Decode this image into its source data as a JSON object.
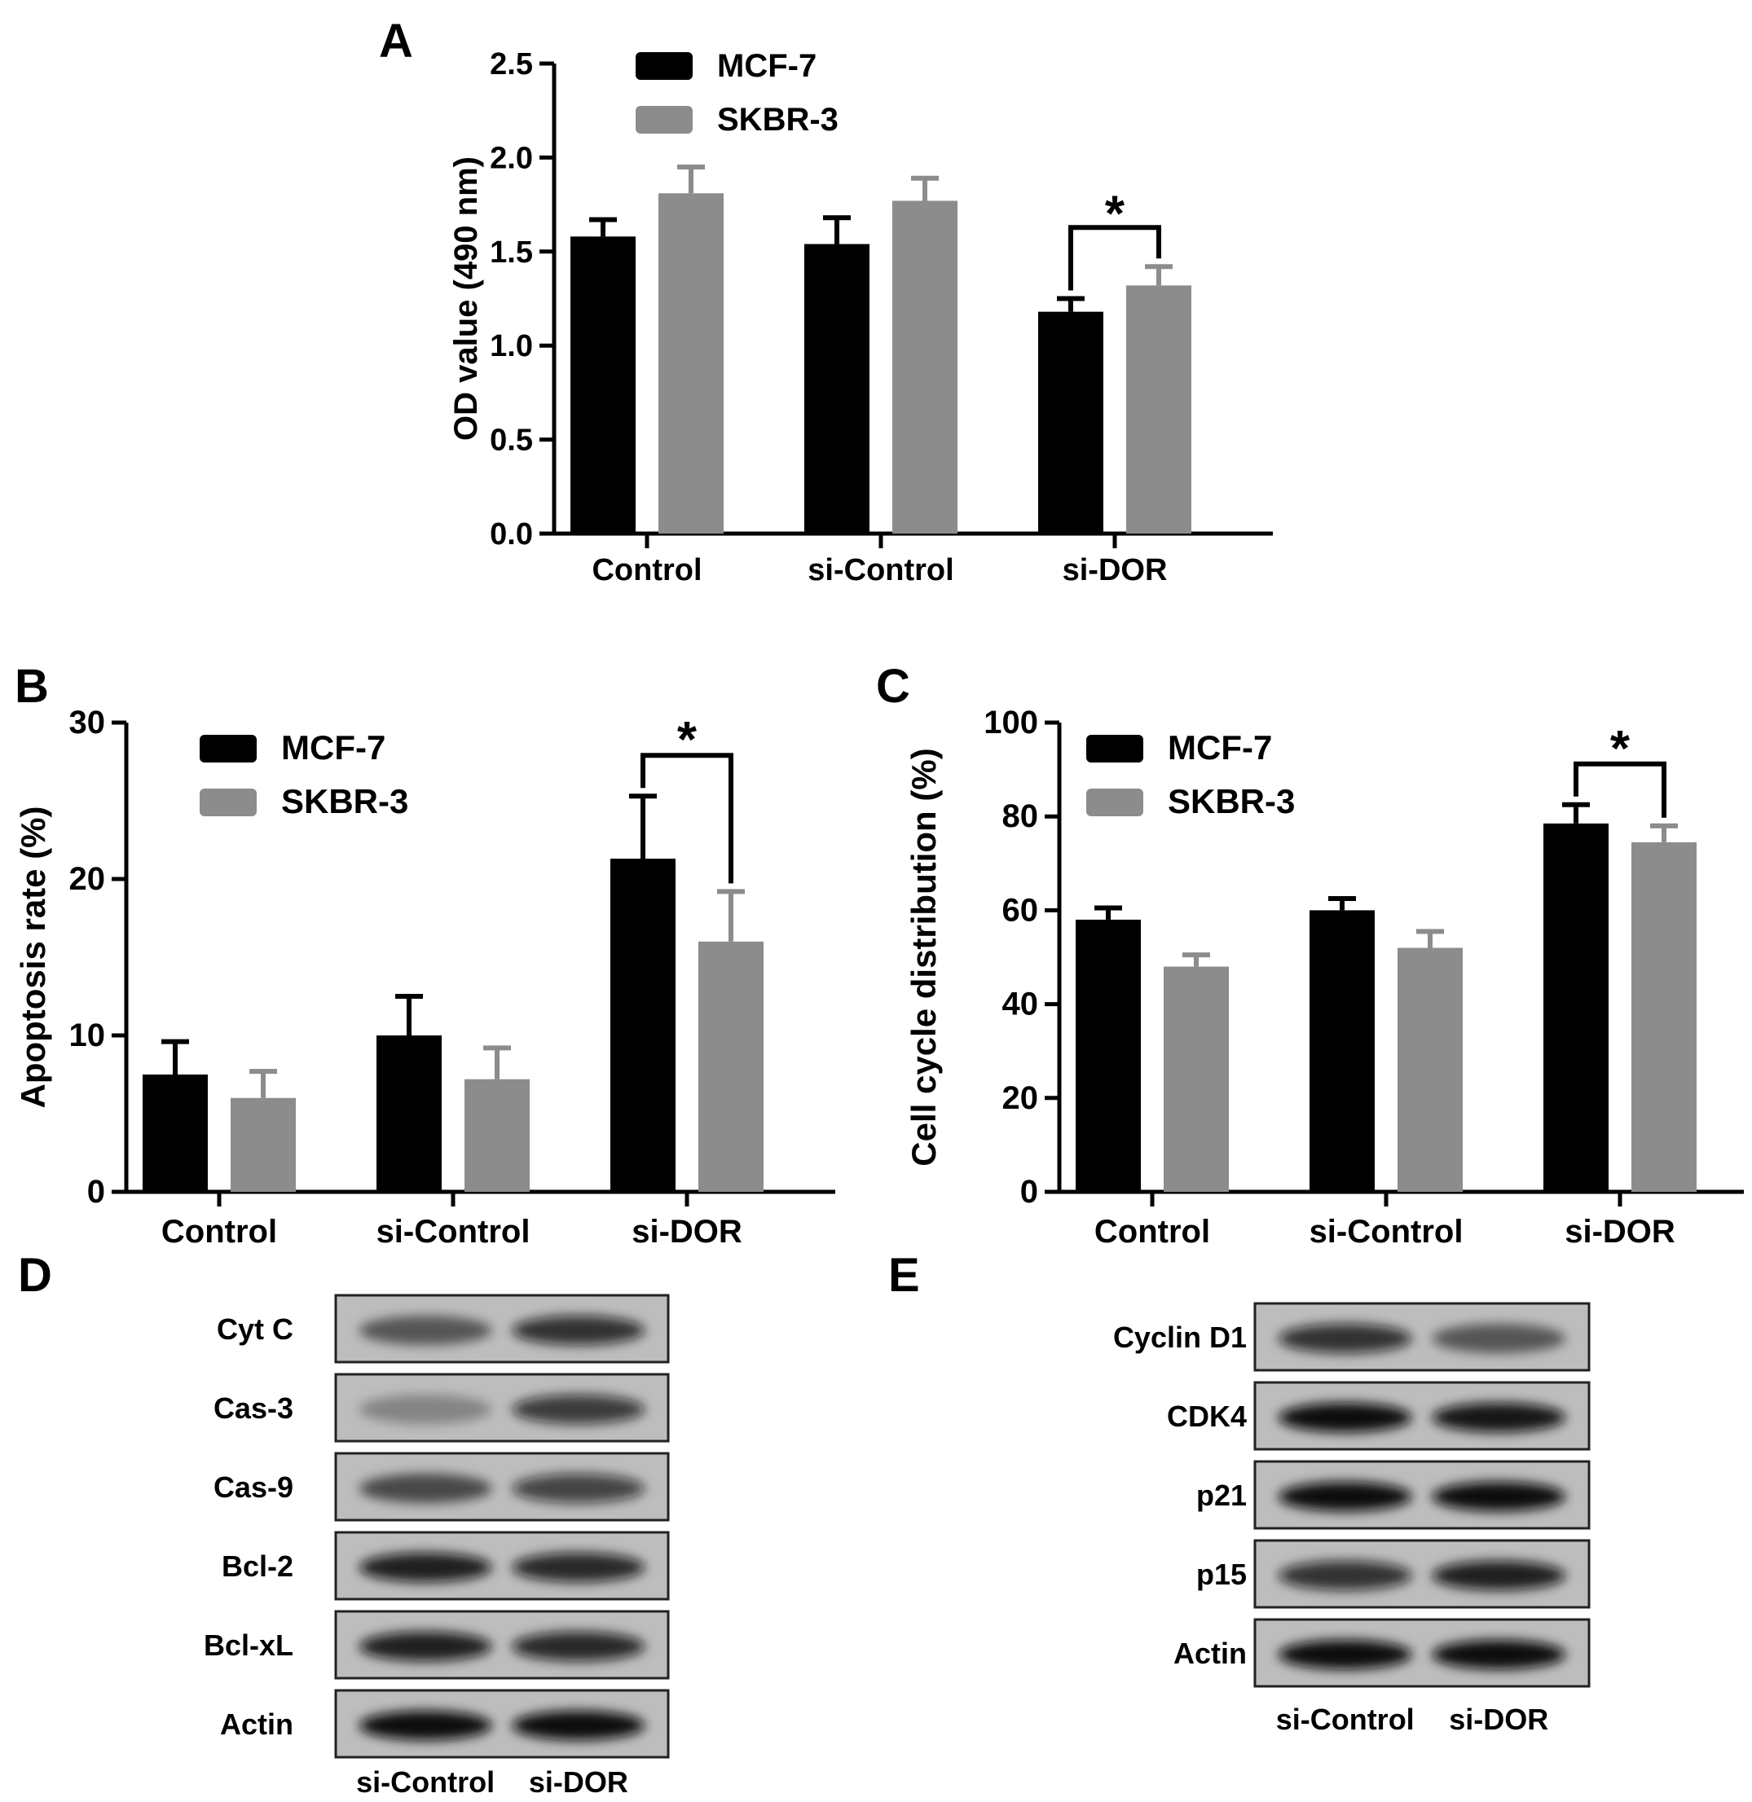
{
  "colors": {
    "mcf7": "#000000",
    "skbr3": "#8c8c8c",
    "axis": "#000000"
  },
  "chart_data": [
    {
      "panel": "A",
      "type": "bar",
      "ylabel": "OD value (490 nm)",
      "xlabel": "",
      "categories": [
        "Control",
        "si-Control",
        "si-DOR"
      ],
      "ylim": [
        0,
        2.5
      ],
      "yticks": [
        0.0,
        0.5,
        1.0,
        1.5,
        2.0,
        2.5
      ],
      "ytick_labels": [
        "0.0",
        "0.5",
        "1.0",
        "1.5",
        "2.0",
        "2.5"
      ],
      "series": [
        {
          "name": "MCF-7",
          "color": "#000000",
          "values": [
            1.58,
            1.54,
            1.18
          ],
          "errors": [
            0.09,
            0.14,
            0.07
          ]
        },
        {
          "name": "SKBR-3",
          "color": "#8c8c8c",
          "values": [
            1.81,
            1.77,
            1.32
          ],
          "errors": [
            0.14,
            0.12,
            0.1
          ]
        }
      ],
      "legend": "top-left",
      "annotation": "*",
      "significance_category": 2
    },
    {
      "panel": "B",
      "type": "bar",
      "ylabel": "Apoptosis rate (%)",
      "xlabel": "",
      "categories": [
        "Control",
        "si-Control",
        "si-DOR"
      ],
      "ylim": [
        0,
        30
      ],
      "yticks": [
        0,
        10,
        20,
        30
      ],
      "ytick_labels": [
        "0",
        "10",
        "20",
        "30"
      ],
      "series": [
        {
          "name": "MCF-7",
          "color": "#000000",
          "values": [
            7.5,
            10.0,
            21.3
          ],
          "errors": [
            2.1,
            2.5,
            4.0
          ]
        },
        {
          "name": "SKBR-3",
          "color": "#8c8c8c",
          "values": [
            6.0,
            7.2,
            16.0
          ],
          "errors": [
            1.7,
            2.0,
            3.2
          ]
        }
      ],
      "legend": "top-left",
      "annotation": "*",
      "significance_category": 2
    },
    {
      "panel": "C",
      "type": "bar",
      "ylabel": "Cell cycle distribution (%)",
      "xlabel": "",
      "categories": [
        "Control",
        "si-Control",
        "si-DOR"
      ],
      "ylim": [
        0,
        100
      ],
      "yticks": [
        0,
        20,
        40,
        60,
        80,
        100
      ],
      "ytick_labels": [
        "0",
        "20",
        "40",
        "60",
        "80",
        "100"
      ],
      "series": [
        {
          "name": "MCF-7",
          "color": "#000000",
          "values": [
            58,
            60,
            78.5
          ],
          "errors": [
            2.5,
            2.5,
            4.0
          ]
        },
        {
          "name": "SKBR-3",
          "color": "#8c8c8c",
          "values": [
            48,
            52,
            74.5
          ],
          "errors": [
            2.5,
            3.5,
            3.5
          ]
        }
      ],
      "legend": "top-left",
      "annotation": "*",
      "significance_category": 2
    }
  ],
  "blots": [
    {
      "panel": "D",
      "rows": [
        "Cyt C",
        "Cas-3",
        "Cas-9",
        "Bcl-2",
        "Bcl-xL",
        "Actin"
      ],
      "lanes": [
        "si-Control",
        "si-DOR"
      ]
    },
    {
      "panel": "E",
      "rows": [
        "Cyclin D1",
        "CDK4",
        "p21",
        "p15",
        "Actin"
      ],
      "lanes": [
        "si-Control",
        "si-DOR"
      ]
    }
  ]
}
